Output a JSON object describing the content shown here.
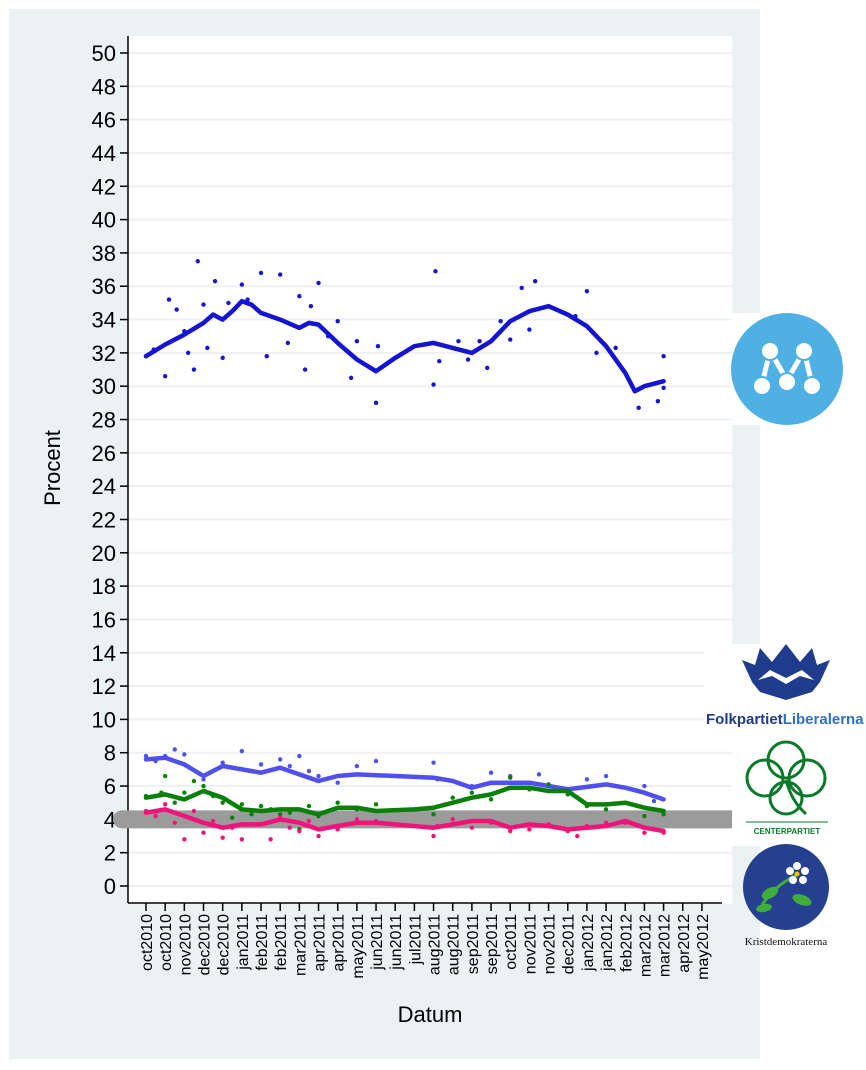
{
  "chart_data": {
    "type": "scatter",
    "xlabel": "Datum",
    "ylabel": "Procent",
    "ylim": [
      0,
      50
    ],
    "y_ticks": [
      0,
      2,
      4,
      6,
      8,
      10,
      12,
      14,
      16,
      18,
      20,
      22,
      24,
      26,
      28,
      30,
      32,
      34,
      36,
      38,
      40,
      42,
      44,
      46,
      48,
      50
    ],
    "x_tick_labels": [
      "oct2010",
      "oct2010",
      "nov2010",
      "dec2010",
      "dec2010",
      "jan2011",
      "feb2011",
      "feb2011",
      "mar2011",
      "apr2011",
      "apr2011",
      "may2011",
      "jun2011",
      "jun2011",
      "jul2011",
      "aug2011",
      "aug2011",
      "sep2011",
      "sep2011",
      "oct2011",
      "nov2011",
      "nov2011",
      "dec2011",
      "jan2012",
      "jan2012",
      "feb2012",
      "mar2012",
      "mar2012",
      "apr2012",
      "may2012"
    ],
    "grid": true,
    "series": [
      {
        "party": "Moderaterna",
        "color": "#1414d2",
        "trend": [
          [
            0,
            31.8
          ],
          [
            1,
            32.5
          ],
          [
            2,
            33.1
          ],
          [
            3,
            33.8
          ],
          [
            3.5,
            34.3
          ],
          [
            4,
            34.0
          ],
          [
            4.5,
            34.5
          ],
          [
            5,
            35.1
          ],
          [
            5.5,
            34.9
          ],
          [
            6,
            34.4
          ],
          [
            7,
            34.0
          ],
          [
            8,
            33.5
          ],
          [
            8.5,
            33.8
          ],
          [
            9,
            33.7
          ],
          [
            10,
            32.6
          ],
          [
            11,
            31.6
          ],
          [
            12,
            30.9
          ],
          [
            13,
            31.7
          ],
          [
            14,
            32.4
          ],
          [
            15,
            32.6
          ],
          [
            16,
            32.3
          ],
          [
            17,
            32.0
          ],
          [
            18,
            32.7
          ],
          [
            19,
            33.9
          ],
          [
            20,
            34.5
          ],
          [
            21,
            34.8
          ],
          [
            22,
            34.3
          ],
          [
            23,
            33.6
          ],
          [
            24,
            32.4
          ],
          [
            25,
            30.8
          ],
          [
            25.5,
            29.7
          ],
          [
            26,
            30.0
          ],
          [
            27,
            30.3
          ]
        ],
        "points": [
          [
            0,
            31.8
          ],
          [
            0.4,
            32.2
          ],
          [
            1,
            30.6
          ],
          [
            1.2,
            35.2
          ],
          [
            1.6,
            34.6
          ],
          [
            2,
            33.3
          ],
          [
            2.2,
            32.0
          ],
          [
            2.5,
            31.0
          ],
          [
            2.7,
            37.5
          ],
          [
            3,
            34.9
          ],
          [
            3.2,
            32.3
          ],
          [
            3.6,
            36.3
          ],
          [
            4,
            31.7
          ],
          [
            4.3,
            35.0
          ],
          [
            5,
            36.1
          ],
          [
            5.3,
            35.2
          ],
          [
            6,
            36.8
          ],
          [
            6.3,
            31.8
          ],
          [
            7,
            36.7
          ],
          [
            7.4,
            32.6
          ],
          [
            8,
            35.4
          ],
          [
            8.3,
            31.0
          ],
          [
            8.6,
            34.8
          ],
          [
            9,
            36.2
          ],
          [
            9.5,
            33.0
          ],
          [
            10,
            33.9
          ],
          [
            10.7,
            30.5
          ],
          [
            11,
            32.7
          ],
          [
            12,
            29.0
          ],
          [
            12.1,
            32.4
          ],
          [
            15,
            30.1
          ],
          [
            15.1,
            36.9
          ],
          [
            15.3,
            31.5
          ],
          [
            16.3,
            32.7
          ],
          [
            16.8,
            31.6
          ],
          [
            17.4,
            32.7
          ],
          [
            17.8,
            31.1
          ],
          [
            18.5,
            33.9
          ],
          [
            19,
            32.8
          ],
          [
            19.6,
            35.9
          ],
          [
            20,
            33.4
          ],
          [
            20.3,
            36.3
          ],
          [
            22.4,
            34.2
          ],
          [
            23,
            35.7
          ],
          [
            23.5,
            32.0
          ],
          [
            24.5,
            32.3
          ],
          [
            25.7,
            28.7
          ],
          [
            26.7,
            29.1
          ],
          [
            27,
            31.8
          ],
          [
            27,
            29.9
          ]
        ]
      },
      {
        "party": "Folkpartiet",
        "color": "#5050f0",
        "trend": [
          [
            0,
            7.6
          ],
          [
            1,
            7.7
          ],
          [
            2,
            7.3
          ],
          [
            3,
            6.6
          ],
          [
            4,
            7.2
          ],
          [
            5,
            7.0
          ],
          [
            6,
            6.8
          ],
          [
            7,
            7.1
          ],
          [
            8,
            6.7
          ],
          [
            9,
            6.3
          ],
          [
            10,
            6.6
          ],
          [
            11,
            6.7
          ],
          [
            13,
            6.6
          ],
          [
            15,
            6.5
          ],
          [
            16,
            6.3
          ],
          [
            17,
            5.9
          ],
          [
            18,
            6.2
          ],
          [
            20,
            6.2
          ],
          [
            21,
            6.0
          ],
          [
            22,
            5.8
          ],
          [
            24,
            6.1
          ],
          [
            25,
            5.9
          ],
          [
            26,
            5.6
          ],
          [
            27,
            5.2
          ]
        ],
        "points": [
          [
            0,
            7.8
          ],
          [
            0.5,
            7.5
          ],
          [
            1,
            7.8
          ],
          [
            1.5,
            8.2
          ],
          [
            2,
            7.9
          ],
          [
            3,
            6.4
          ],
          [
            4,
            7.4
          ],
          [
            5,
            8.1
          ],
          [
            5.5,
            6.9
          ],
          [
            6,
            7.3
          ],
          [
            7,
            7.6
          ],
          [
            7.5,
            7.2
          ],
          [
            8,
            7.8
          ],
          [
            8.5,
            6.9
          ],
          [
            9,
            6.6
          ],
          [
            10,
            6.2
          ],
          [
            11,
            7.2
          ],
          [
            12,
            7.5
          ],
          [
            15,
            7.4
          ],
          [
            15.2,
            6.4
          ],
          [
            17,
            6.0
          ],
          [
            18,
            6.8
          ],
          [
            19,
            6.6
          ],
          [
            20,
            6.2
          ],
          [
            20.5,
            6.7
          ],
          [
            23,
            6.4
          ],
          [
            24,
            6.6
          ],
          [
            26,
            6.0
          ],
          [
            26.5,
            5.1
          ]
        ]
      },
      {
        "party": "Centerpartiet",
        "color": "#0a800a",
        "trend": [
          [
            0,
            5.3
          ],
          [
            1,
            5.5
          ],
          [
            2,
            5.2
          ],
          [
            3,
            5.7
          ],
          [
            4,
            5.3
          ],
          [
            5,
            4.6
          ],
          [
            6,
            4.5
          ],
          [
            7,
            4.6
          ],
          [
            8,
            4.6
          ],
          [
            9,
            4.3
          ],
          [
            10,
            4.7
          ],
          [
            11,
            4.7
          ],
          [
            12,
            4.5
          ],
          [
            14,
            4.6
          ],
          [
            15,
            4.7
          ],
          [
            16,
            5.0
          ],
          [
            17,
            5.3
          ],
          [
            18,
            5.5
          ],
          [
            19,
            5.9
          ],
          [
            20,
            5.9
          ],
          [
            21,
            5.7
          ],
          [
            22,
            5.7
          ],
          [
            23,
            4.9
          ],
          [
            24,
            4.9
          ],
          [
            25,
            5.0
          ],
          [
            26,
            4.7
          ],
          [
            27,
            4.5
          ]
        ],
        "points": [
          [
            0,
            5.4
          ],
          [
            0.8,
            5.6
          ],
          [
            1,
            6.6
          ],
          [
            1.5,
            5.0
          ],
          [
            2,
            5.6
          ],
          [
            2.5,
            6.3
          ],
          [
            3,
            6.0
          ],
          [
            3.5,
            5.4
          ],
          [
            4,
            5.0
          ],
          [
            4.5,
            4.1
          ],
          [
            5,
            4.9
          ],
          [
            5.5,
            4.3
          ],
          [
            6,
            4.8
          ],
          [
            6.5,
            4.6
          ],
          [
            7,
            4.3
          ],
          [
            7.5,
            4.4
          ],
          [
            8,
            3.4
          ],
          [
            8.5,
            4.8
          ],
          [
            9,
            4.2
          ],
          [
            10,
            5.0
          ],
          [
            11,
            4.6
          ],
          [
            12,
            4.9
          ],
          [
            15,
            4.3
          ],
          [
            16,
            5.3
          ],
          [
            17,
            5.6
          ],
          [
            18,
            5.2
          ],
          [
            19,
            6.5
          ],
          [
            20,
            5.8
          ],
          [
            21,
            6.1
          ],
          [
            22,
            5.5
          ],
          [
            23,
            4.8
          ],
          [
            24,
            4.6
          ],
          [
            25,
            5.0
          ],
          [
            26,
            4.2
          ],
          [
            27,
            4.3
          ]
        ]
      },
      {
        "party": "Kristdemokraterna",
        "color": "#f0147a",
        "trend": [
          [
            0,
            4.4
          ],
          [
            1,
            4.6
          ],
          [
            2,
            4.2
          ],
          [
            3,
            3.8
          ],
          [
            4,
            3.5
          ],
          [
            5,
            3.7
          ],
          [
            6,
            3.7
          ],
          [
            7,
            4.0
          ],
          [
            8,
            3.8
          ],
          [
            9,
            3.4
          ],
          [
            10,
            3.6
          ],
          [
            11,
            3.8
          ],
          [
            12,
            3.8
          ],
          [
            13,
            3.7
          ],
          [
            15,
            3.5
          ],
          [
            16,
            3.7
          ],
          [
            17,
            3.9
          ],
          [
            18,
            3.9
          ],
          [
            19,
            3.5
          ],
          [
            20,
            3.7
          ],
          [
            21,
            3.6
          ],
          [
            22,
            3.4
          ],
          [
            23,
            3.5
          ],
          [
            24,
            3.6
          ],
          [
            25,
            3.9
          ],
          [
            26,
            3.5
          ],
          [
            27,
            3.3
          ]
        ],
        "points": [
          [
            0,
            4.5
          ],
          [
            0.5,
            4.2
          ],
          [
            1,
            4.9
          ],
          [
            1.5,
            3.8
          ],
          [
            2,
            2.8
          ],
          [
            2.5,
            4.5
          ],
          [
            3,
            3.2
          ],
          [
            3.5,
            3.9
          ],
          [
            4,
            2.9
          ],
          [
            4.5,
            3.5
          ],
          [
            5,
            2.8
          ],
          [
            6,
            3.7
          ],
          [
            6.5,
            2.8
          ],
          [
            7,
            4.1
          ],
          [
            7.5,
            3.5
          ],
          [
            8,
            3.3
          ],
          [
            8.5,
            3.9
          ],
          [
            9,
            3.0
          ],
          [
            10,
            3.4
          ],
          [
            11,
            4.0
          ],
          [
            12,
            3.9
          ],
          [
            15,
            3.0
          ],
          [
            15.2,
            3.6
          ],
          [
            16,
            4.0
          ],
          [
            17,
            3.5
          ],
          [
            18,
            3.8
          ],
          [
            19,
            3.3
          ],
          [
            20,
            3.4
          ],
          [
            21,
            3.7
          ],
          [
            22,
            3.3
          ],
          [
            22.5,
            3.0
          ],
          [
            23,
            3.6
          ],
          [
            24,
            3.8
          ],
          [
            25,
            3.8
          ],
          [
            26,
            3.2
          ],
          [
            27,
            3.2
          ]
        ]
      }
    ],
    "threshold": {
      "value": 4,
      "color": "#9b9b9b"
    }
  },
  "logos": {
    "folkpartiet": {
      "prefix": "Folkpartiet",
      "suffix": "Liberalerna",
      "prefix_color": "#1e3b8c",
      "suffix_color": "#2e6fc9"
    },
    "centerpartiet": {
      "text": "CENTERPARTIET",
      "color": "#0a7a2a"
    },
    "kristdemokraterna": {
      "text": "Kristdemokraterna",
      "color": "#1f3a8f"
    }
  }
}
